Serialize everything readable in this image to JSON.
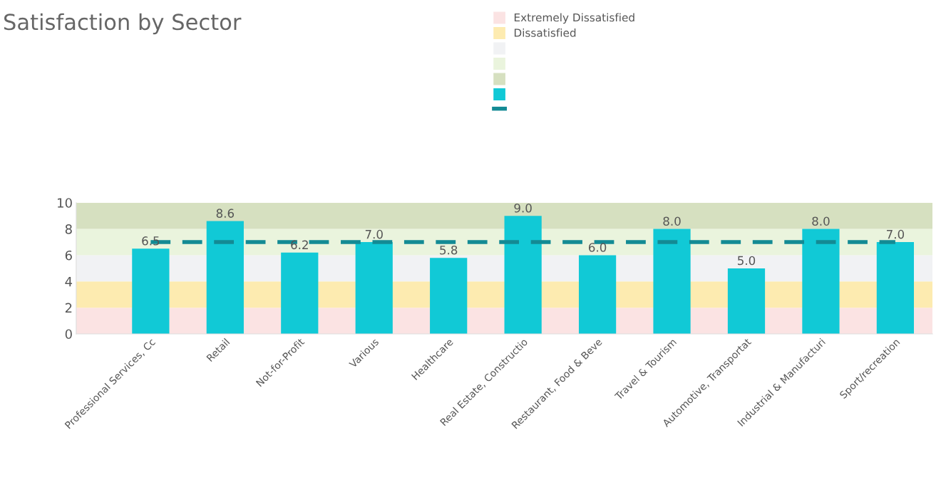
{
  "chart_data": {
    "type": "bar",
    "title": "Satisfaction by Sector",
    "categories": [
      "Professional Services, Cc",
      "Retail",
      "Not-for-Profit",
      "Various",
      "Healthcare",
      "Real Estate, Constructio",
      "Restaurant, Food & Beve",
      "Travel & Tourism",
      "Automotive, Transportat",
      "Industrial & Manufacturi",
      "Sport/recreation"
    ],
    "values": [
      6.5,
      8.6,
      6.2,
      7.0,
      5.8,
      9.0,
      6.0,
      8.0,
      5.0,
      8.0,
      7.0
    ],
    "color": "#11c9d6",
    "value_labels": [
      "6.5",
      "8.6",
      "6.2",
      "7.0",
      "5.8",
      "9.0",
      "6.0",
      "8.0",
      "5.0",
      "8.0",
      "7.0"
    ],
    "ylim": [
      0,
      10
    ],
    "yticks": [
      0,
      2,
      4,
      6,
      8,
      10
    ],
    "bands": [
      {
        "axis": "y",
        "from": 0,
        "to": 2,
        "label": "Extremely Dissatisfied",
        "color": "#fbe3e3"
      },
      {
        "axis": "y",
        "from": 2,
        "to": 4,
        "label": "Dissatisfied",
        "color": "#fdebb0"
      },
      {
        "axis": "y",
        "from": 4,
        "to": 6,
        "color": "#f1f2f4"
      },
      {
        "axis": "y",
        "from": 6,
        "to": 8,
        "color": "#eaf4dd"
      },
      {
        "axis": "y",
        "from": 8,
        "to": 10,
        "color": "#d6e0c0"
      }
    ],
    "ref_lines": [
      {
        "axis": "y",
        "value": 7.0,
        "color": "#138a94",
        "line_style": "dashed"
      }
    ],
    "grid": false,
    "legend": "top"
  }
}
